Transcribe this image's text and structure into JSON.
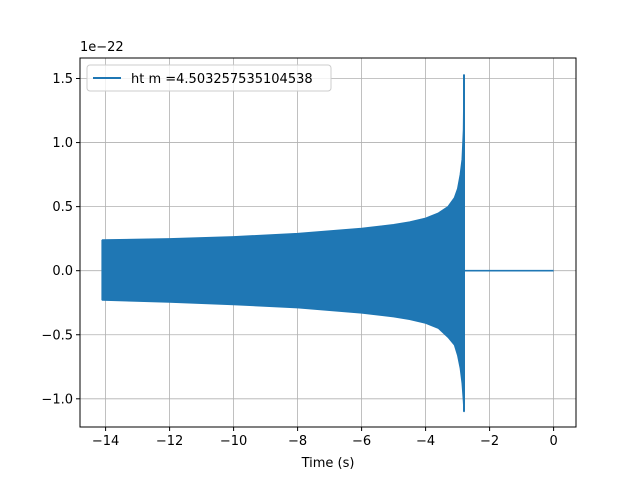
{
  "chart_data": {
    "type": "line",
    "title": "",
    "xlabel": "Time (s)",
    "ylabel": "",
    "offset_label": "1e−22",
    "xlim": [
      -14.8,
      0.7
    ],
    "ylim": [
      -1.22,
      1.66
    ],
    "x_ticks": [
      -14,
      -12,
      -10,
      -8,
      -6,
      -4,
      -2,
      0
    ],
    "x_tick_labels": [
      "−14",
      "−12",
      "−10",
      "−8",
      "−6",
      "−4",
      "−2",
      "0"
    ],
    "y_ticks": [
      -1.0,
      -0.5,
      0.0,
      0.5,
      1.0,
      1.5
    ],
    "y_tick_labels": [
      "−1.0",
      "−0.5",
      "0.0",
      "0.5",
      "1.0",
      "1.5"
    ],
    "grid": true,
    "legend_position": "top-left",
    "series": [
      {
        "name": "ht m =4.503257535104538",
        "color": "#1f77b4",
        "style": "oscillating chirp envelope (values x 1e-22)",
        "upper_envelope": {
          "x": [
            -14.1,
            -12,
            -10,
            -8,
            -6,
            -5,
            -4.5,
            -4,
            -3.6,
            -3.3,
            -3.1,
            -3.0,
            -2.92,
            -2.86,
            -2.82,
            -2.8
          ],
          "y": [
            0.24,
            0.25,
            0.265,
            0.29,
            0.33,
            0.36,
            0.38,
            0.41,
            0.45,
            0.5,
            0.57,
            0.64,
            0.75,
            0.87,
            1.1,
            1.53
          ]
        },
        "lower_envelope": {
          "x": [
            -14.1,
            -12,
            -10,
            -8,
            -6,
            -5,
            -4.5,
            -4,
            -3.6,
            -3.3,
            -3.1,
            -3.0,
            -2.92,
            -2.86,
            -2.82,
            -2.8
          ],
          "y": [
            -0.23,
            -0.245,
            -0.265,
            -0.29,
            -0.33,
            -0.36,
            -0.38,
            -0.41,
            -0.45,
            -0.52,
            -0.58,
            -0.66,
            -0.76,
            -0.88,
            -1.02,
            -1.1
          ]
        },
        "ringdown_x": [
          -2.78,
          0.0
        ],
        "ringdown_y": 0.0
      }
    ]
  }
}
